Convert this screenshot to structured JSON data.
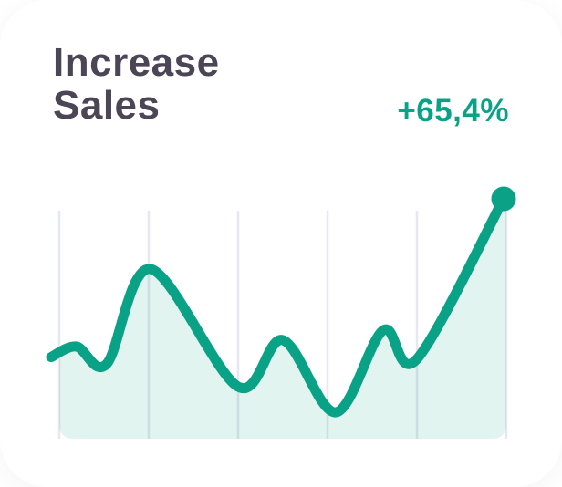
{
  "card": {
    "title_lines": [
      "Increase",
      "Sales"
    ],
    "stat": "+65,4%"
  },
  "colors": {
    "accent": "#0AA287",
    "title_text": "#4A4656",
    "gridline": "#E6E7F1",
    "area_fill": "rgba(10,162,135,0.12)",
    "card_bg": "#FFFFFF"
  },
  "chart_data": {
    "type": "area",
    "title": "Increase Sales",
    "annotation": "+65,4%",
    "x": [
      0,
      0.056,
      0.123,
      0.22,
      0.413,
      0.512,
      0.629,
      0.734,
      0.808,
      1.0
    ],
    "values": [
      34,
      38.4,
      31.2,
      70.7,
      21.7,
      41.1,
      11,
      45.2,
      33.1,
      100
    ],
    "ylim": [
      0,
      100
    ],
    "xlabel": "",
    "ylabel": "",
    "grid": "vertical-only",
    "gridline_count": 6,
    "legend": "none",
    "line_smoothing": "spline",
    "end_marker": "dot-on-last-point"
  }
}
